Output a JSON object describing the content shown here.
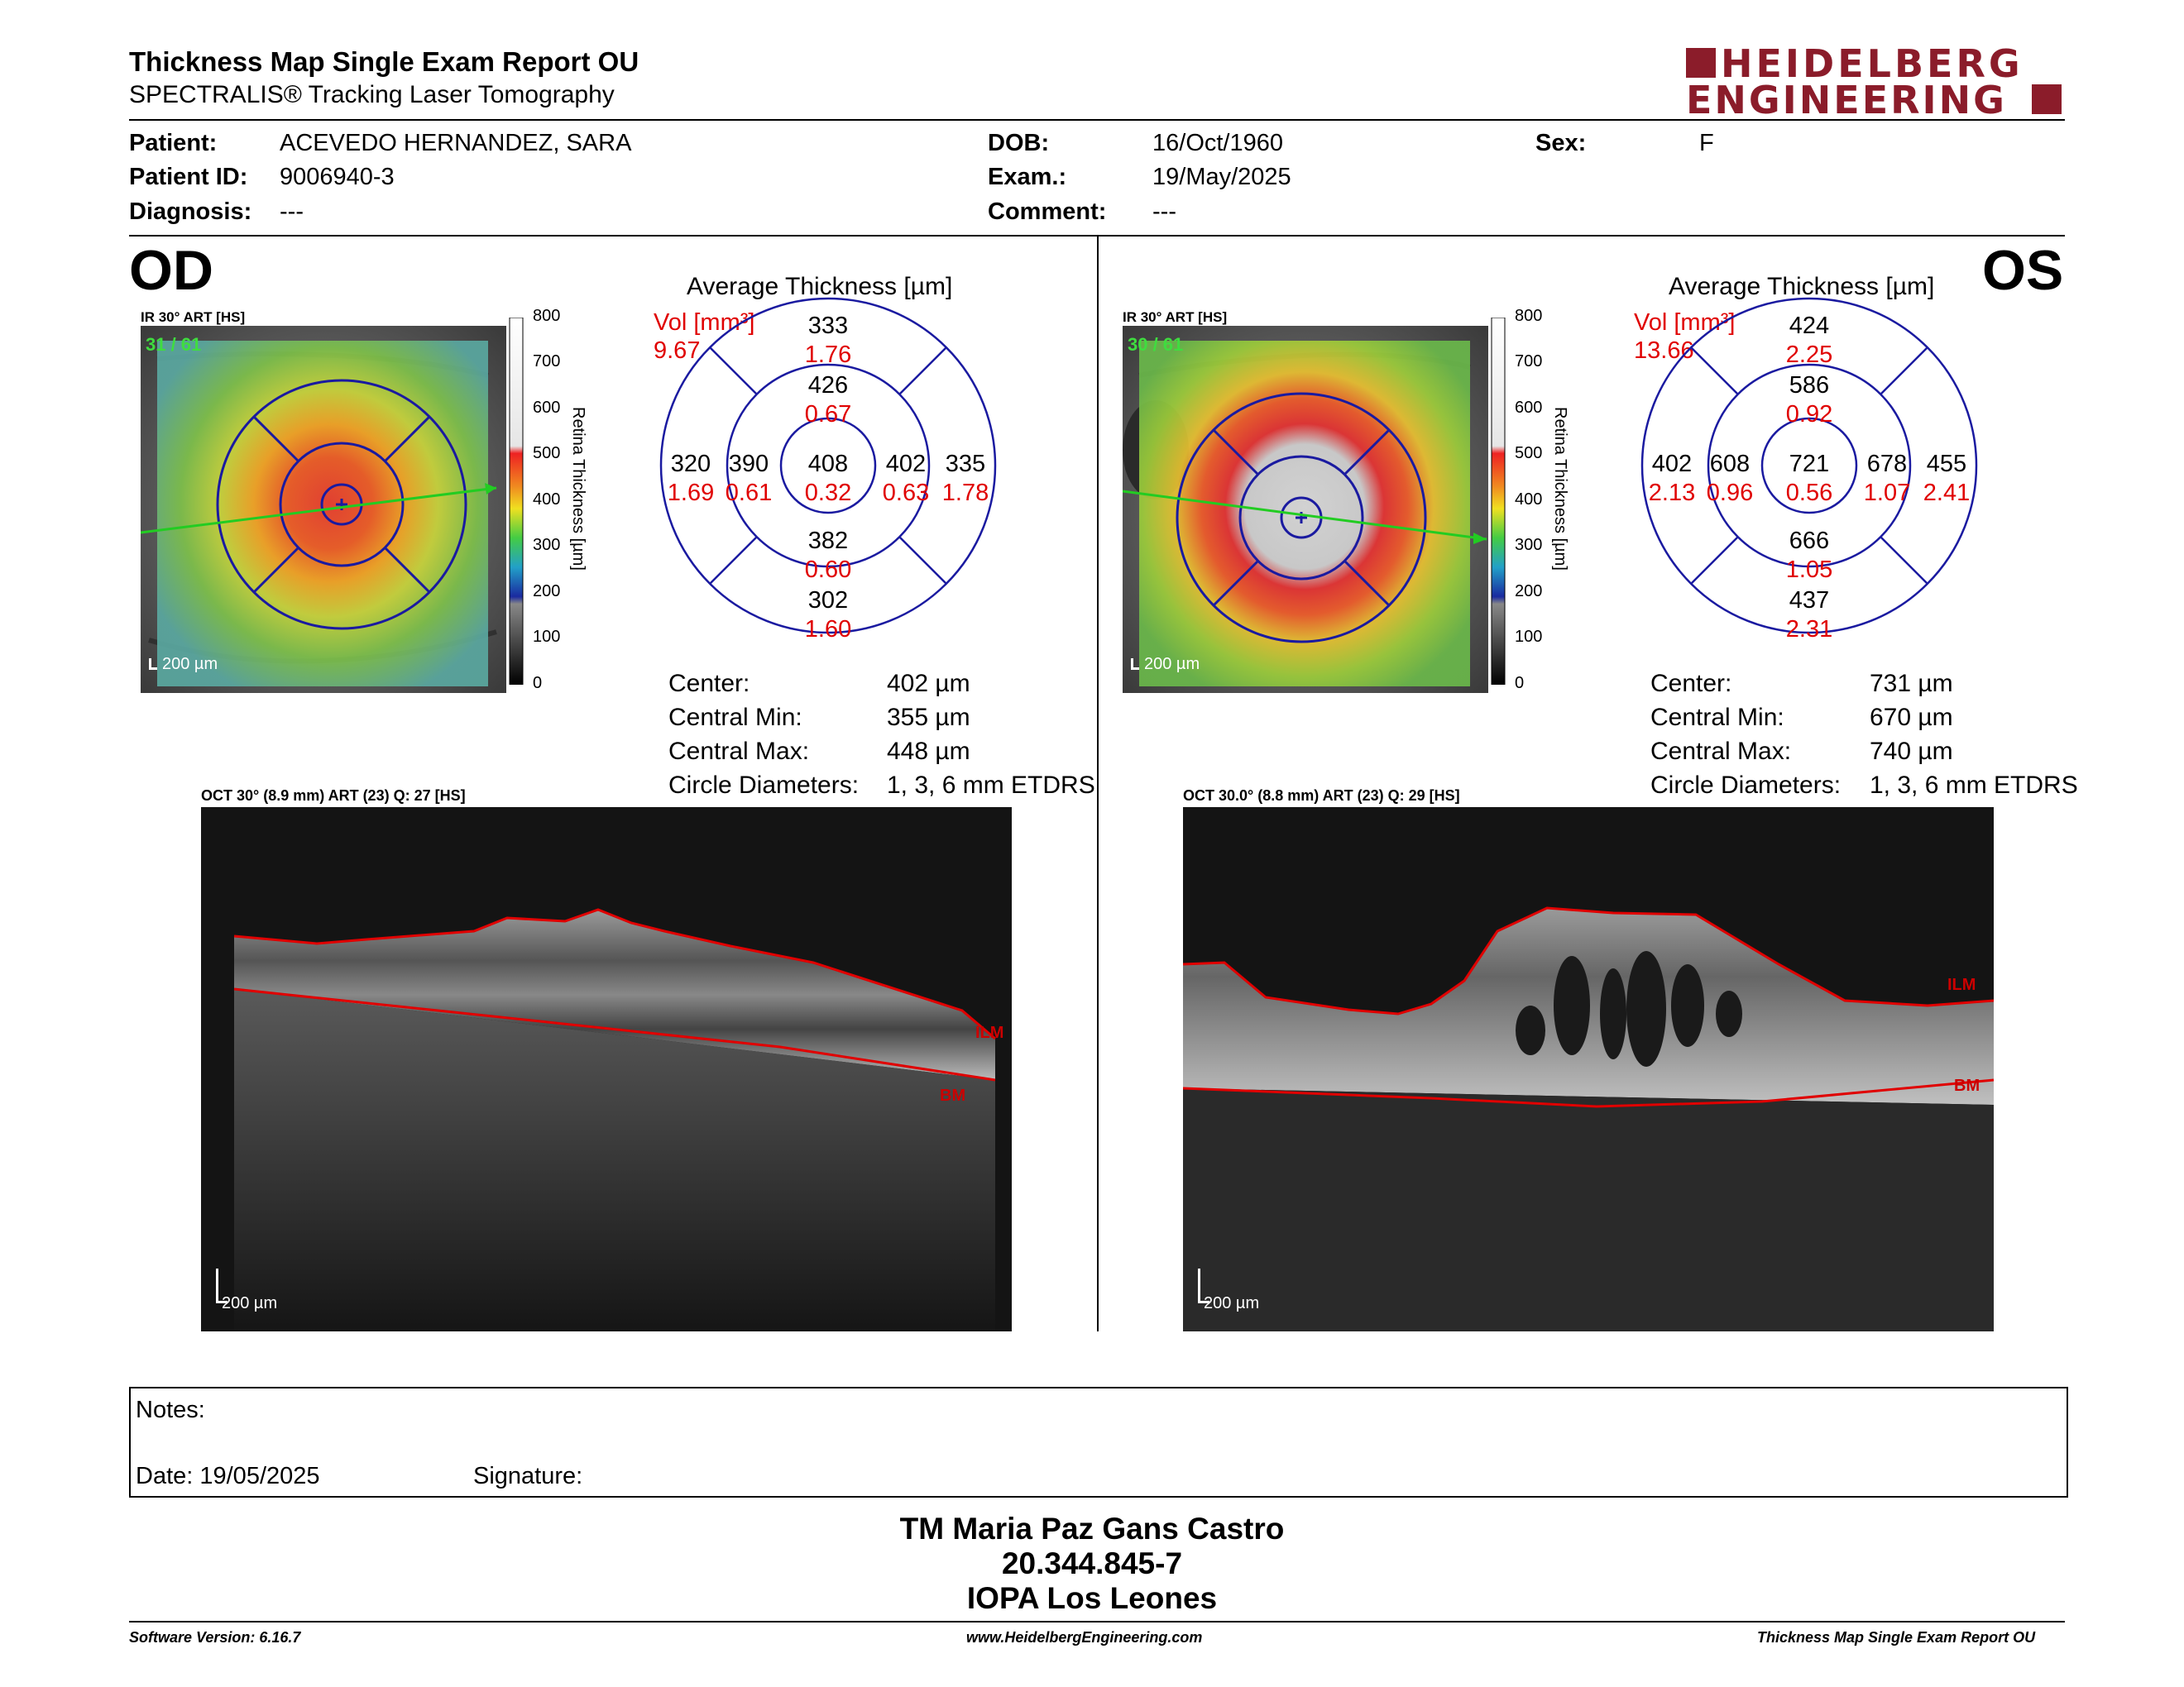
{
  "header": {
    "title": "Thickness Map Single Exam Report OU",
    "subtitle": "SPECTRALIS® Tracking Laser Tomography",
    "brand_line1": "HEIDELBERG",
    "brand_line2": "ENGINEERING",
    "brand_color": "#8b1c2a"
  },
  "patient": {
    "patient_label": "Patient:",
    "patient_value": "ACEVEDO HERNANDEZ, SARA",
    "id_label": "Patient ID:",
    "id_value": "9006940-3",
    "diagnosis_label": "Diagnosis:",
    "diagnosis_value": "---",
    "dob_label": "DOB:",
    "dob_value": "16/Oct/1960",
    "exam_label": "Exam.:",
    "exam_value": "19/May/2025",
    "comment_label": "Comment:",
    "comment_value": "---",
    "sex_label": "Sex:",
    "sex_value": "F"
  },
  "od": {
    "eye": "OD",
    "ir_caption": "IR 30° ART [HS]",
    "ir_frames": "31 / 61",
    "scale_bar": "200 µm",
    "colorbar_ticks": [
      "800",
      "700",
      "600",
      "500",
      "400",
      "300",
      "200",
      "100",
      "0"
    ],
    "colorbar_title": "Retina Thickness [µm]",
    "avg_title": "Average Thickness [µm]",
    "vol_label": "Vol [mm³]",
    "vol_value": "9.67",
    "grid": {
      "superior_outer": "333",
      "superior_outer_vol": "1.76",
      "superior_inner": "426",
      "superior_inner_vol": "0.67",
      "temporal_outer": "320",
      "temporal_outer_vol": "1.69",
      "temporal_inner": "390",
      "temporal_inner_vol": "0.61",
      "center": "408",
      "center_vol": "0.32",
      "nasal_inner": "402",
      "nasal_inner_vol": "0.63",
      "nasal_outer": "335",
      "nasal_outer_vol": "1.78",
      "inferior_inner": "382",
      "inferior_inner_vol": "0.60",
      "inferior_outer": "302",
      "inferior_outer_vol": "1.60"
    },
    "stats": {
      "center_label": "Center:",
      "center_value": "402 µm",
      "min_label": "Central Min:",
      "min_value": "355 µm",
      "max_label": "Central Max:",
      "max_value": "448 µm",
      "diam_label": "Circle Diameters:",
      "diam_value": "1, 3, 6 mm ETDRS"
    },
    "oct_caption": "OCT 30° (8.9 mm) ART (23) Q: 27 [HS]",
    "oct_scale": "200 µm",
    "ilm_label": "ILM",
    "bm_label": "BM"
  },
  "os": {
    "eye": "OS",
    "ir_caption": "IR 30° ART [HS]",
    "ir_frames": "30 / 61",
    "scale_bar": "200 µm",
    "colorbar_ticks": [
      "800",
      "700",
      "600",
      "500",
      "400",
      "300",
      "200",
      "100",
      "0"
    ],
    "colorbar_title": "Retina Thickness [µm]",
    "avg_title": "Average Thickness [µm]",
    "vol_label": "Vol [mm³]",
    "vol_value": "13.66",
    "grid": {
      "superior_outer": "424",
      "superior_outer_vol": "2.25",
      "superior_inner": "586",
      "superior_inner_vol": "0.92",
      "temporal_outer": "402",
      "temporal_outer_vol": "2.13",
      "temporal_inner": "608",
      "temporal_inner_vol": "0.96",
      "center": "721",
      "center_vol": "0.56",
      "nasal_inner": "678",
      "nasal_inner_vol": "1.07",
      "nasal_outer": "455",
      "nasal_outer_vol": "2.41",
      "inferior_inner": "666",
      "inferior_inner_vol": "1.05",
      "inferior_outer": "437",
      "inferior_outer_vol": "2.31"
    },
    "stats": {
      "center_label": "Center:",
      "center_value": "731 µm",
      "min_label": "Central Min:",
      "min_value": "670 µm",
      "max_label": "Central Max:",
      "max_value": "740 µm",
      "diam_label": "Circle Diameters:",
      "diam_value": "1, 3, 6 mm ETDRS"
    },
    "oct_caption": "OCT 30.0° (8.8 mm) ART (23) Q: 29 [HS]",
    "oct_scale": "200 µm",
    "ilm_label": "ILM",
    "bm_label": "BM"
  },
  "notes": {
    "notes_label": "Notes:",
    "date_label": "Date: 19/05/2025",
    "signature_label": "Signature:"
  },
  "signature_block": {
    "line1": "TM Maria Paz Gans Castro",
    "line2": "20.344.845-7",
    "line3": "IOPA Los Leones"
  },
  "footer": {
    "software": "Software Version: 6.16.7",
    "website": "www.HeidelbergEngineering.com",
    "report": "Thickness Map Single Exam Report OU"
  }
}
